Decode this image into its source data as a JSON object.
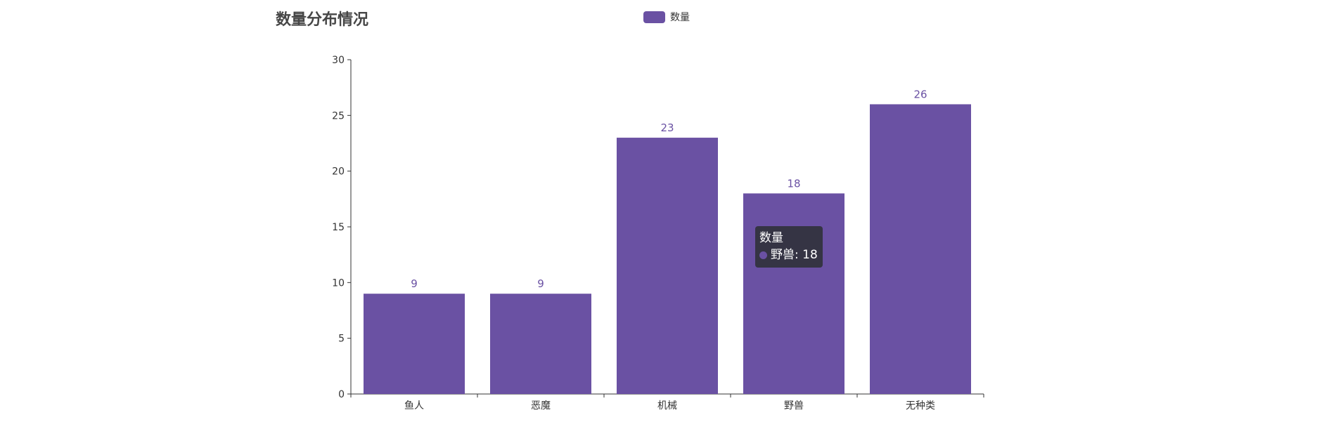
{
  "colors": {
    "bar": "#6a51a3",
    "axis": "#333333",
    "tooltip_bg": "#32323c"
  },
  "chart_data": {
    "type": "bar",
    "title": "数量分布情况",
    "categories": [
      "鱼人",
      "恶魔",
      "机械",
      "野兽",
      "无种类"
    ],
    "series": [
      {
        "name": "数量",
        "values": [
          9,
          9,
          23,
          18,
          26
        ]
      }
    ],
    "yticks": [
      "0",
      "5",
      "10",
      "15",
      "20",
      "25",
      "30"
    ],
    "ylim": [
      0,
      30
    ],
    "grid": false,
    "legend_position": "top-center",
    "data_labels": true
  },
  "tooltip": {
    "series_name": "数量",
    "category": "野兽",
    "value": "18"
  }
}
